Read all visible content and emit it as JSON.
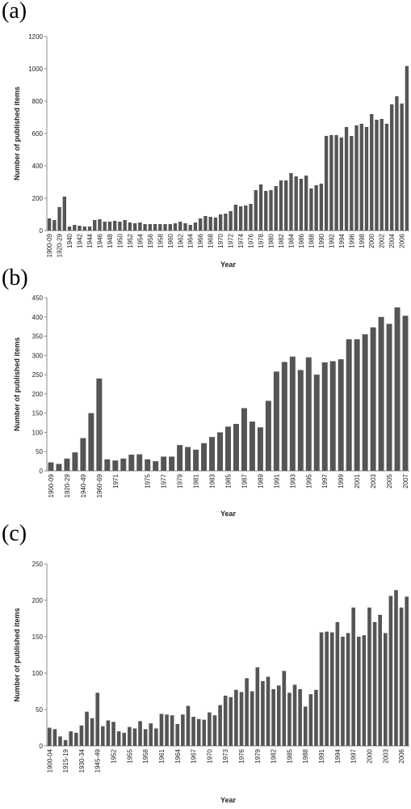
{
  "chart_data": [
    {
      "type": "bar",
      "label": "(a)",
      "ylabel": "Number of published items",
      "xlabel": "Year",
      "color": "#555555",
      "grid": false,
      "categories": [
        "1900-09",
        null,
        "1920-29",
        null,
        "1940",
        null,
        "1942",
        null,
        "1944",
        null,
        "1946",
        null,
        "1948",
        null,
        "1950",
        null,
        "1952",
        null,
        "1954",
        null,
        "1956",
        null,
        "1958",
        null,
        "1960",
        null,
        "1962",
        null,
        "1964",
        null,
        "1966",
        null,
        "1968",
        null,
        "1970",
        null,
        "1972",
        null,
        "1974",
        null,
        "1976",
        null,
        "1978",
        null,
        "1980",
        null,
        "1982",
        null,
        "1984",
        null,
        "1986",
        null,
        "1988",
        null,
        "1990",
        null,
        "1992",
        null,
        "1994",
        null,
        "1996",
        null,
        "1998",
        null,
        "2000",
        null,
        "2002",
        null,
        "2004",
        null,
        "2006",
        null
      ],
      "values": [
        75,
        65,
        145,
        210,
        25,
        35,
        30,
        25,
        25,
        65,
        70,
        55,
        55,
        60,
        55,
        65,
        50,
        45,
        50,
        40,
        40,
        40,
        40,
        40,
        40,
        45,
        55,
        45,
        35,
        50,
        75,
        90,
        85,
        80,
        100,
        105,
        120,
        160,
        150,
        155,
        165,
        250,
        285,
        245,
        250,
        275,
        310,
        310,
        355,
        335,
        320,
        340,
        260,
        280,
        290,
        585,
        590,
        590,
        575,
        640,
        585,
        650,
        660,
        640,
        720,
        685,
        690,
        660,
        780,
        830,
        785,
        1017
      ],
      "ylim": [
        0,
        1200
      ],
      "yticks": [
        0,
        200,
        400,
        600,
        800,
        1000,
        1200
      ]
    },
    {
      "type": "bar",
      "label": "(b)",
      "ylabel": "Number of published items",
      "xlabel": "Year",
      "color": "#555555",
      "grid": false,
      "categories": [
        "1900-09",
        null,
        "1920-29",
        null,
        "1940-49",
        null,
        "1960-69",
        null,
        "1971",
        null,
        null,
        null,
        "1975",
        null,
        "1977",
        null,
        "1979",
        null,
        "1981",
        null,
        "1983",
        null,
        "1985",
        null,
        "1987",
        null,
        "1989",
        null,
        "1991",
        null,
        "1993",
        null,
        "1995",
        null,
        "1997",
        null,
        "1999",
        null,
        "2001",
        null,
        "2003",
        null,
        "2005",
        null,
        "2007"
      ],
      "values": [
        22,
        18,
        32,
        48,
        85,
        150,
        240,
        30,
        27,
        32,
        42,
        43,
        30,
        25,
        37,
        37,
        67,
        62,
        55,
        72,
        88,
        100,
        115,
        122,
        163,
        128,
        113,
        182,
        258,
        283,
        297,
        262,
        295,
        250,
        282,
        285,
        290,
        342,
        342,
        355,
        373,
        400,
        382,
        425,
        403
      ],
      "ylim": [
        0,
        450
      ],
      "yticks": [
        0,
        50,
        100,
        150,
        200,
        250,
        300,
        350,
        400,
        450
      ]
    },
    {
      "type": "bar",
      "label": "(c)",
      "ylabel": "Number of published items",
      "xlabel": "Year",
      "color": "#555555",
      "grid": false,
      "categories": [
        "1900-04",
        null,
        null,
        "1915-19",
        null,
        null,
        "1930-34",
        null,
        null,
        "1945-49",
        null,
        null,
        "1952",
        null,
        null,
        "1955",
        null,
        null,
        "1958",
        null,
        null,
        "1961",
        null,
        null,
        "1964",
        null,
        null,
        "1967",
        null,
        null,
        "1970",
        null,
        null,
        "1973",
        null,
        null,
        "1976",
        null,
        null,
        "1979",
        null,
        null,
        "1982",
        null,
        null,
        "1985",
        null,
        null,
        "1988",
        null,
        null,
        "1991",
        null,
        null,
        "1994",
        null,
        null,
        "1997",
        null,
        null,
        "2000",
        null,
        null,
        "2003",
        null,
        null,
        "2006",
        null
      ],
      "values": [
        25,
        23,
        13,
        8,
        20,
        18,
        28,
        47,
        38,
        73,
        27,
        35,
        33,
        20,
        18,
        26,
        24,
        34,
        23,
        31,
        24,
        44,
        43,
        42,
        30,
        43,
        55,
        40,
        37,
        36,
        46,
        42,
        56,
        69,
        67,
        77,
        74,
        93,
        75,
        108,
        89,
        95,
        78,
        83,
        103,
        73,
        84,
        78,
        54,
        71,
        77,
        156,
        157,
        156,
        170,
        150,
        155,
        190,
        150,
        152,
        190,
        170,
        180,
        155,
        206,
        214,
        190,
        205
      ],
      "ylim": [
        0,
        250
      ],
      "yticks": [
        0,
        50,
        100,
        150,
        200,
        250
      ]
    }
  ]
}
